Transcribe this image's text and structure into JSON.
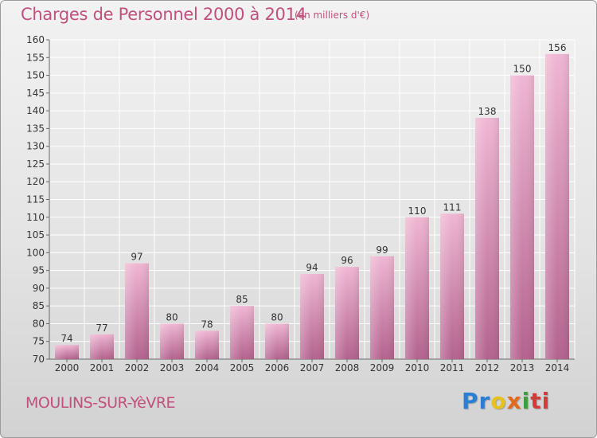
{
  "header": {
    "title": "Charges de Personnel 2000 à 2014",
    "unit": "(en milliers d'€)"
  },
  "footer": {
    "city": "MOULINS-SUR-YèVRE",
    "logo": [
      "Pr",
      "o",
      "x",
      "i",
      "ti"
    ]
  },
  "colors": {
    "title": "#c0507e",
    "bar_light": "#f0b6d2",
    "bar_dark": "#b3638e",
    "grid": "#ffffff"
  },
  "chart_data": {
    "type": "bar",
    "title": "Charges de Personnel 2000 à 2014",
    "subtitle": "(en milliers d'€)",
    "xlabel": "",
    "ylabel": "",
    "categories": [
      "2000",
      "2001",
      "2002",
      "2003",
      "2004",
      "2005",
      "2006",
      "2007",
      "2008",
      "2009",
      "2010",
      "2011",
      "2012",
      "2013",
      "2014"
    ],
    "values": [
      74,
      77,
      97,
      80,
      78,
      85,
      80,
      94,
      96,
      99,
      110,
      111,
      138,
      150,
      156
    ],
    "ylim": [
      70,
      160
    ],
    "yticks": [
      70,
      75,
      80,
      85,
      90,
      95,
      100,
      105,
      110,
      115,
      120,
      125,
      130,
      135,
      140,
      145,
      150,
      155,
      160
    ],
    "grid": true,
    "legend": "none"
  }
}
